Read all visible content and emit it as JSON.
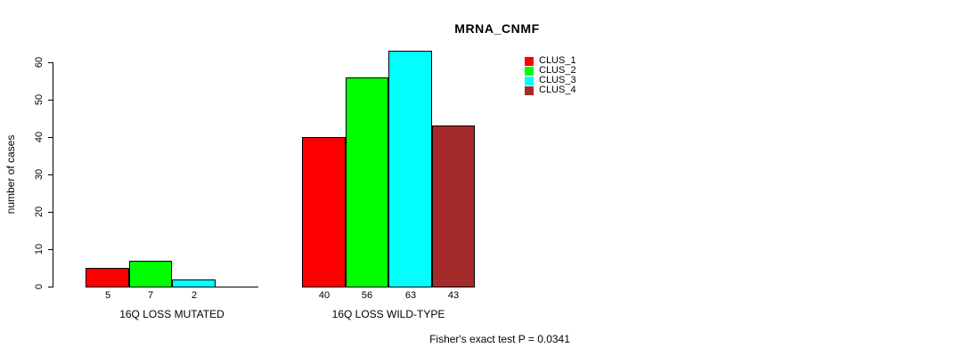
{
  "chart_data": {
    "type": "bar",
    "title": "MRNA_CNMF",
    "ylabel": "number of cases",
    "xlabel": "",
    "ylim": [
      0,
      60
    ],
    "yticks": [
      0,
      10,
      20,
      30,
      40,
      50,
      60
    ],
    "grid": false,
    "legend_position": "top-right-inside",
    "legend": [
      "CLUS_1",
      "CLUS_2",
      "CLUS_3",
      "CLUS_4"
    ],
    "categories": [
      "16Q LOSS MUTATED",
      "16Q LOSS WILD-TYPE"
    ],
    "series": [
      {
        "name": "CLUS_1",
        "color": "#FF0000",
        "values": [
          5,
          40
        ]
      },
      {
        "name": "CLUS_2",
        "color": "#00FF00",
        "values": [
          7,
          56
        ]
      },
      {
        "name": "CLUS_3",
        "color": "#00FFFF",
        "values": [
          2,
          63
        ]
      },
      {
        "name": "CLUS_4",
        "color": "#A52A2A",
        "values": [
          0,
          43
        ]
      }
    ],
    "value_labels": {
      "shown": true,
      "zero_values_hidden": true
    },
    "annotation": "Fisher's exact test P = 0.0341"
  }
}
